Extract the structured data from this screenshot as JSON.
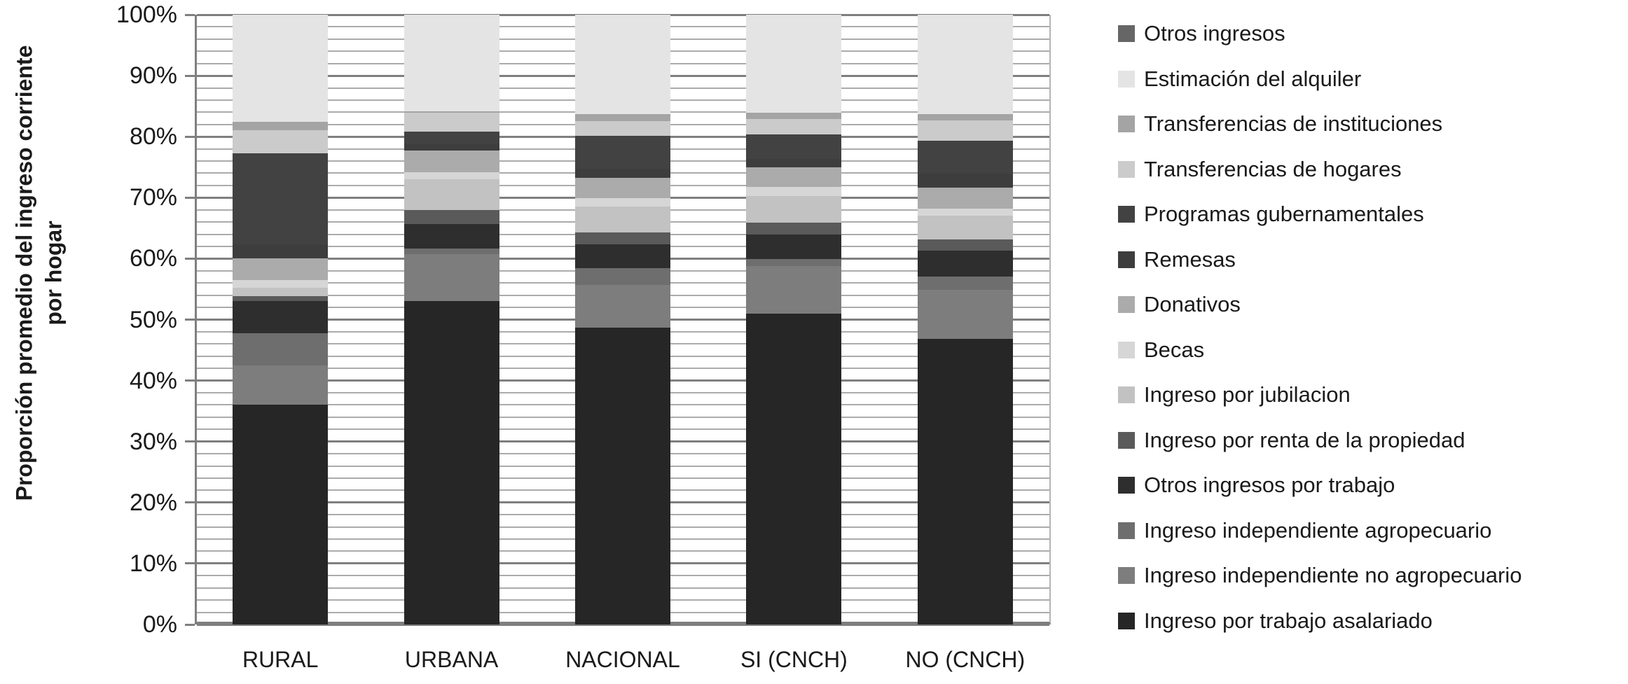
{
  "chart_data": {
    "type": "bar",
    "stacked": true,
    "title": "",
    "categories": [
      "RURAL",
      "URBANA",
      "NACIONAL",
      "SI (CNCH)",
      "NO (CNCH)"
    ],
    "y_axis": {
      "title_line1": "Proporción promedio del ingreso corriente",
      "title_line2": "por hogar",
      "min": 0,
      "max": 100,
      "major_tick_step": 10,
      "minor_grid_step": 2,
      "tick_label_suffix": "%",
      "tick_labels": [
        "0%",
        "10%",
        "20%",
        "30%",
        "40%",
        "50%",
        "60%",
        "70%",
        "80%",
        "90%",
        "100%"
      ]
    },
    "grid": "on",
    "legend_position": "right",
    "legend_order_top_to_bottom": [
      "Otros ingresos",
      "Estimación del alquiler",
      "Transferencias de instituciones",
      "Transferencias de hogares",
      "Programas gubernamentales",
      "Remesas",
      "Donativos",
      "Becas",
      "Ingreso por jubilacion",
      "Ingreso por renta de la propiedad",
      "Otros ingresos por trabajo",
      "Ingreso independiente agropecuario",
      "Ingreso independiente no agropecuario",
      "Ingreso por trabajo asalariado"
    ],
    "series_bottom_to_top": [
      {
        "name": "Ingreso por trabajo asalariado",
        "color": "#262626",
        "values": [
          36.0,
          53.0,
          48.7,
          51.0,
          46.9
        ]
      },
      {
        "name": "Ingreso independiente no agropecuario",
        "color": "#7d7d7d",
        "values": [
          6.5,
          7.7,
          7.0,
          7.8,
          8.0
        ]
      },
      {
        "name": "Ingreso independiente agropecuario",
        "color": "#6e6e6e",
        "values": [
          5.3,
          1.0,
          2.7,
          1.1,
          2.2
        ]
      },
      {
        "name": "Otros ingresos por trabajo",
        "color": "#2e2e2e",
        "values": [
          5.2,
          4.0,
          4.0,
          4.1,
          4.2
        ]
      },
      {
        "name": "Ingreso por renta de la propiedad",
        "color": "#5a5a5a",
        "values": [
          0.9,
          2.3,
          1.9,
          1.9,
          1.9
        ]
      },
      {
        "name": "Ingreso por jubilacion",
        "color": "#c2c2c2",
        "values": [
          1.3,
          5.0,
          4.3,
          4.4,
          3.8
        ]
      },
      {
        "name": "Becas",
        "color": "#d6d6d6",
        "values": [
          1.3,
          1.2,
          1.3,
          1.5,
          1.2
        ]
      },
      {
        "name": "Donativos",
        "color": "#ababab",
        "values": [
          3.5,
          3.5,
          3.4,
          3.2,
          3.4
        ]
      },
      {
        "name": "Remesas",
        "color": "#3d3d3d",
        "values": [
          2.4,
          1.1,
          1.4,
          1.4,
          2.3
        ]
      },
      {
        "name": "Programas gubernamentales",
        "color": "#424242",
        "values": [
          14.9,
          2.0,
          5.4,
          4.0,
          5.5
        ]
      },
      {
        "name": "Transferencias de hogares",
        "color": "#cbcbcb",
        "values": [
          3.8,
          3.1,
          2.5,
          2.5,
          3.3
        ]
      },
      {
        "name": "Transferencias de instituciones",
        "color": "#a4a4a4",
        "values": [
          1.4,
          0.3,
          1.1,
          1.0,
          1.0
        ]
      },
      {
        "name": "Estimación del alquiler",
        "color": "#e4e4e4",
        "values": [
          17.5,
          15.8,
          16.3,
          16.1,
          16.3
        ]
      },
      {
        "name": "Otros ingresos",
        "color": "#666666",
        "values": [
          0,
          0,
          0,
          0,
          0
        ]
      }
    ]
  },
  "style": {
    "axis_color": "#7f7f7f",
    "minor_gridline_color": "#ababab",
    "major_gridline_color": "#7f7f7f",
    "text_color": "#1a1a1a",
    "background_color": "#ffffff"
  }
}
